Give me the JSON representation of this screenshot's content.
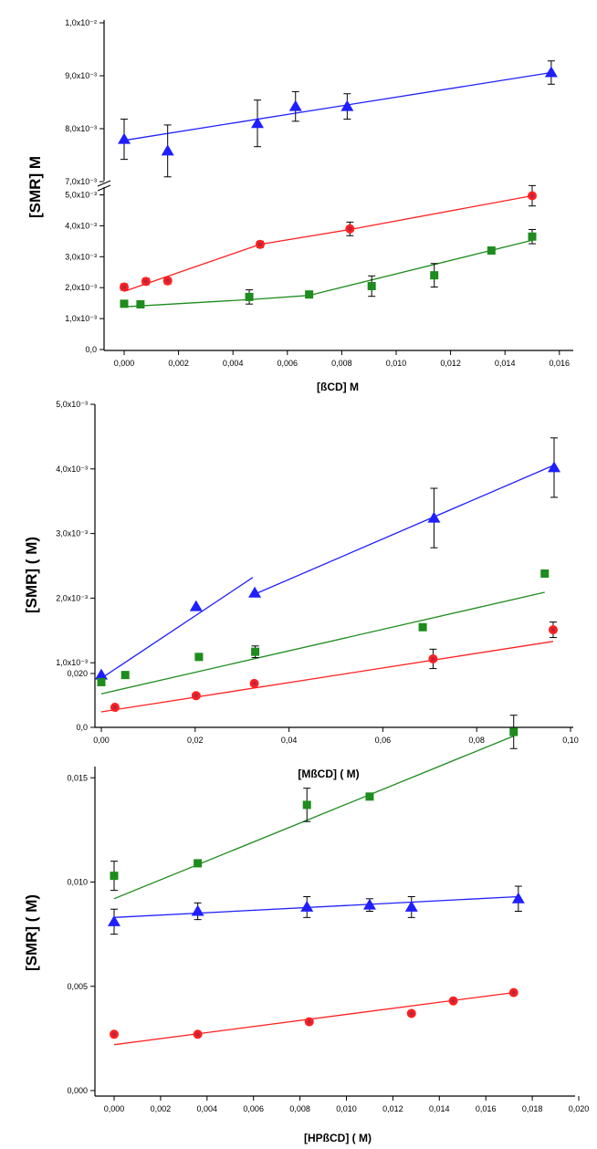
{
  "colors": {
    "blue": "#1f1fff",
    "red": "#ff2020",
    "green": "#1e8c1e",
    "axis": "#000000"
  },
  "chart_data": [
    {
      "type": "scatter",
      "xlabel": "[ßCD] M",
      "ylabel": "[SMR] M",
      "xlim": [
        -0.001,
        0.0163
      ],
      "x_ticks": [
        "0,000",
        "0,002",
        "0,004",
        "0,006",
        "0,008",
        "0,010",
        "0,012",
        "0,014",
        "0,016"
      ],
      "y_ticks_lower": [
        "0,0",
        "1,0x10⁻³",
        "2,0x10⁻³",
        "3,0x10⁻³",
        "4,0x10⁻³",
        "5,0x10⁻³"
      ],
      "y_ticks_upper": [
        "7,0x10⁻³",
        "8,0x10⁻³",
        "9,0x10⁻³",
        "1,0x10⁻²"
      ],
      "broken_y_axis": true,
      "series": [
        {
          "color": "blue",
          "marker": "triangle",
          "x": [
            0.0,
            0.0016,
            0.0049,
            0.0063,
            0.0082,
            0.0157
          ],
          "y": [
            0.0078,
            0.00758,
            0.0081,
            0.00842,
            0.00842,
            0.00906
          ],
          "err": [
            0.00038,
            0.00049,
            0.00044,
            0.00028,
            0.00024,
            0.00022
          ],
          "fit": [
            [
              0.0,
              0.00778
            ],
            [
              0.0157,
              0.00906
            ]
          ]
        },
        {
          "color": "red",
          "marker": "circle",
          "x": [
            0.0,
            0.0008,
            0.0016,
            0.005,
            0.0083,
            0.015
          ],
          "y": [
            0.00202,
            0.0022,
            0.00222,
            0.0034,
            0.0039,
            0.00497
          ],
          "err": [
            0.0001,
            0.0001,
            0.0001,
            0.0001,
            0.00022,
            0.00033
          ],
          "fit": [
            [
              0.0,
              0.00188
            ],
            [
              0.005,
              0.0034
            ],
            [
              0.0083,
              0.00388
            ],
            [
              0.015,
              0.00497
            ]
          ]
        },
        {
          "color": "green",
          "marker": "square",
          "x": [
            0.0,
            0.0006,
            0.0046,
            0.0068,
            0.0091,
            0.0114,
            0.0135,
            0.015
          ],
          "y": [
            0.00148,
            0.00146,
            0.0017,
            0.00178,
            0.00205,
            0.0024,
            0.0032,
            0.00365
          ],
          "err": [
            0.0001,
            0.0001,
            0.00023,
            0.0001,
            0.00033,
            0.00038,
            0.0001,
            0.00023
          ],
          "fit": [
            [
              0.0,
              0.00138
            ],
            [
              0.0047,
              0.00162
            ],
            [
              0.0068,
              0.00175
            ],
            [
              0.015,
              0.00353
            ]
          ]
        }
      ]
    },
    {
      "type": "scatter",
      "xlabel": "[MßCD] ( M)",
      "ylabel": "[SMR] ( M)",
      "xlim": [
        -0.001,
        0.1
      ],
      "ylim": [
        0,
        0.005
      ],
      "x_ticks": [
        "0,00",
        "0,02",
        "0,04",
        "0,06",
        "0,08",
        "0,10"
      ],
      "y_ticks": [
        "0,0",
        "1,0x10⁻³",
        "2,0x10⁻³",
        "3,0x10⁻³",
        "4,0x10⁻³",
        "5,0x10⁻³"
      ],
      "series": [
        {
          "color": "blue",
          "marker": "triangle",
          "x": [
            0.0,
            0.0202,
            0.0327,
            0.0709,
            0.0965
          ],
          "y": [
            0.00081,
            0.00187,
            0.00208,
            0.00324,
            0.00402
          ],
          "err": [
            0.0,
            0.0,
            0.0,
            0.00046,
            0.00046
          ],
          "fit": [
            [
              0.0,
              0.00076
            ],
            [
              0.0323,
              0.00232
            ]
          ],
          "fit2": [
            [
              0.033,
              0.00207
            ],
            [
              0.0965,
              0.00406
            ]
          ]
        },
        {
          "color": "green",
          "marker": "square",
          "x": [
            0.0,
            0.0051,
            0.0208,
            0.0328,
            0.0685,
            0.0945
          ],
          "y": [
            0.0007,
            0.00081,
            0.00109,
            0.00117,
            0.00155,
            0.00238
          ],
          "err": [
            0.0,
            0.0,
            0.0,
            9e-05,
            0.0,
            0.0
          ],
          "fit": [
            [
              0.0,
              0.00052
            ],
            [
              0.0945,
              0.00209
            ]
          ]
        },
        {
          "color": "red",
          "marker": "circle",
          "x": [
            0.0029,
            0.0202,
            0.0326,
            0.0707,
            0.0963
          ],
          "y": [
            0.00031,
            0.00049,
            0.00068,
            0.00106,
            0.00151
          ],
          "err": [
            0.0,
            0.0,
            0.0,
            0.00015,
            0.00012
          ],
          "fit": [
            [
              0.0,
              0.00024
            ],
            [
              0.0963,
              0.00133
            ]
          ]
        }
      ]
    },
    {
      "type": "scatter",
      "xlabel": "[HPßCD] ( M)",
      "ylabel": "[SMR] ( M)",
      "xlim": [
        -0.001,
        0.02
      ],
      "ylim": [
        0,
        0.02
      ],
      "x_ticks": [
        "0,000",
        "0,002",
        "0,004",
        "0,006",
        "0,008",
        "0,010",
        "0,012",
        "0,014",
        "0,016",
        "0,018",
        "0,020"
      ],
      "y_ticks": [
        "0,000",
        "0,005",
        "0,010",
        "0,015",
        "0,020"
      ],
      "series": [
        {
          "color": "green",
          "marker": "square",
          "x": [
            0.0,
            0.0036,
            0.0083,
            0.011,
            0.0172
          ],
          "y": [
            0.0103,
            0.0109,
            0.0137,
            0.0141,
            0.0172
          ],
          "err": [
            0.0007,
            0.0,
            0.0008,
            0.0,
            0.0008
          ],
          "fit": [
            [
              0.0,
              0.0092
            ],
            [
              0.0172,
              0.017
            ]
          ]
        },
        {
          "color": "blue",
          "marker": "triangle",
          "x": [
            0.0,
            0.0036,
            0.0083,
            0.011,
            0.0128,
            0.0174
          ],
          "y": [
            0.0081,
            0.0086,
            0.0088,
            0.0089,
            0.0088,
            0.0092
          ],
          "err": [
            0.0006,
            0.0004,
            0.0005,
            0.0003,
            0.0005,
            0.0006
          ],
          "fit": [
            [
              0.0,
              0.0083
            ],
            [
              0.0174,
              0.0093
            ]
          ]
        },
        {
          "color": "red",
          "marker": "circle",
          "x": [
            0.0,
            0.0036,
            0.0084,
            0.0128,
            0.0146,
            0.0172
          ],
          "y": [
            0.0027,
            0.0027,
            0.0033,
            0.0037,
            0.0043,
            0.0047
          ],
          "err": [
            0.0,
            0.0,
            0.0,
            0.0,
            0.0,
            0.0
          ],
          "fit": [
            [
              0.0,
              0.0022
            ],
            [
              0.0172,
              0.0047
            ]
          ]
        }
      ]
    }
  ]
}
